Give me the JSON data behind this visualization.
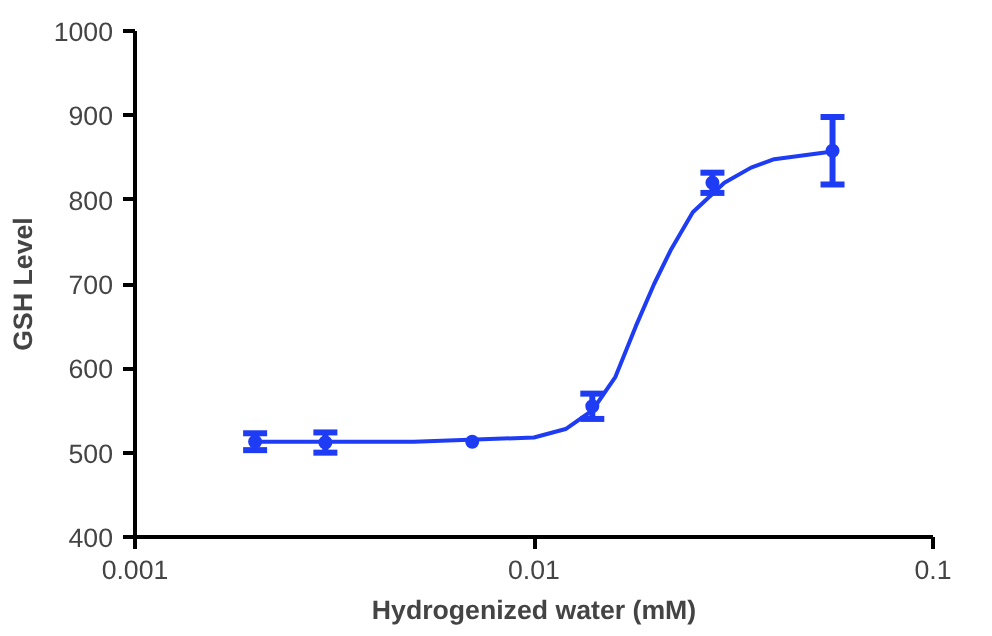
{
  "chart_data": {
    "type": "scatter",
    "xlabel": "Hydrogenized water (mM)",
    "ylabel": "GSH Level",
    "log": "x",
    "xlim": [
      0.001,
      0.1
    ],
    "xticks": [
      0.001,
      0.01,
      0.1
    ],
    "ylim": [
      400,
      1000
    ],
    "yticks": [
      400,
      500,
      600,
      700,
      800,
      900,
      1000
    ],
    "grid": false,
    "series": [
      {
        "marker": "circle",
        "color": "#1f3cf5",
        "x": [
          0.002,
          0.003,
          0.007,
          0.014,
          0.028,
          0.056
        ],
        "values": [
          513,
          512,
          513,
          555,
          820,
          858
        ],
        "errors": [
          10,
          12,
          null,
          15,
          12,
          40
        ]
      },
      {
        "type": "line",
        "color": "#1f3cf5",
        "line_style": "solid",
        "x": [
          0.002,
          0.005,
          0.01,
          0.012,
          0.014,
          0.016,
          0.018,
          0.02,
          0.022,
          0.025,
          0.03,
          0.035,
          0.04,
          0.056
        ],
        "values": [
          513,
          513,
          518,
          528,
          550,
          590,
          650,
          700,
          740,
          785,
          820,
          838,
          848,
          857
        ]
      }
    ]
  }
}
